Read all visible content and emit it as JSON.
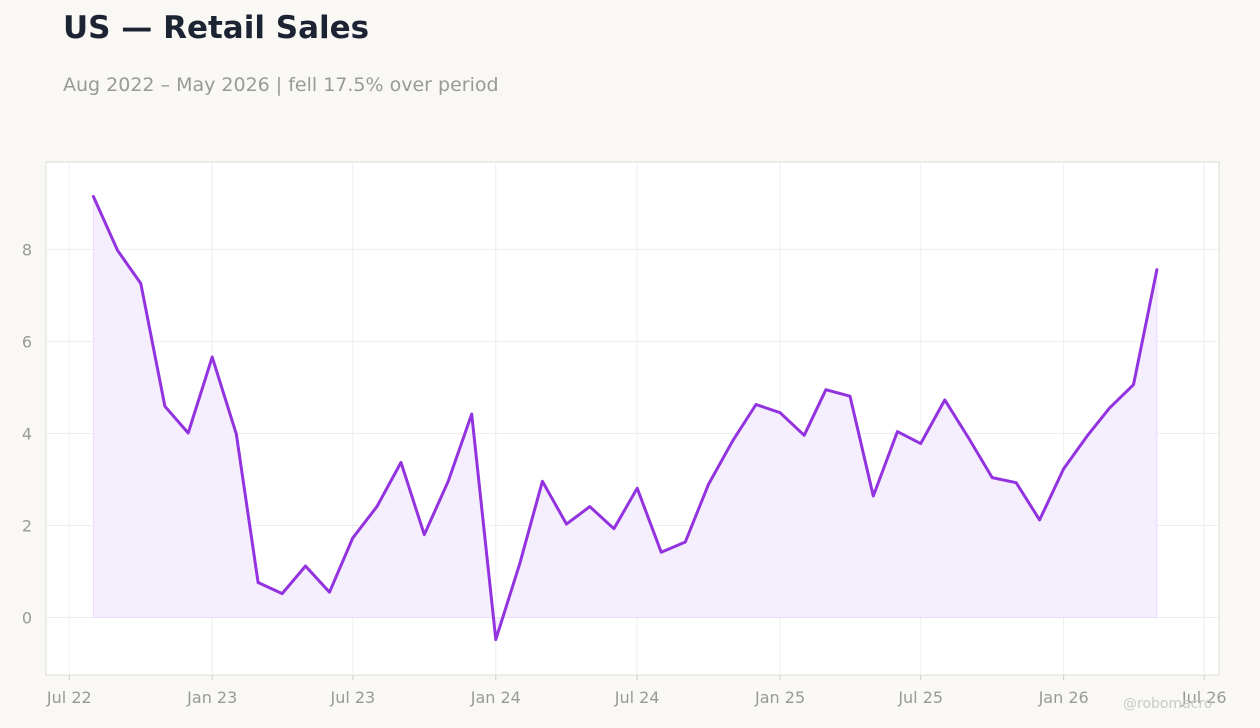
{
  "header": {
    "title": "US — Retail Sales",
    "subtitle": "Aug 2022 – May 2026 | fell 17.5% over period"
  },
  "watermark": "@robomacro",
  "colors": {
    "line": "#9333e0",
    "fill": "#f5eefd",
    "plot_bg": "#ffffff",
    "page_bg": "#f9f8f5",
    "grid": "#eeeeee",
    "tick_text": "#999999"
  },
  "chart_data": {
    "type": "area",
    "title": "US — Retail Sales",
    "subtitle": "Aug 2022 – May 2026 | fell 17.5% over period",
    "xlabel": "",
    "ylabel": "",
    "grid": true,
    "legend": "none",
    "x_range": [
      "2022-06-01",
      "2026-07-20"
    ],
    "ylim": [
      -1.25,
      9.9
    ],
    "y_ticks": [
      0,
      2,
      4,
      6,
      8
    ],
    "x_ticks": [
      {
        "date": "2022-07-01",
        "label": "Jul 22"
      },
      {
        "date": "2023-01-01",
        "label": "Jan 23"
      },
      {
        "date": "2023-07-01",
        "label": "Jul 23"
      },
      {
        "date": "2024-01-01",
        "label": "Jan 24"
      },
      {
        "date": "2024-07-01",
        "label": "Jul 24"
      },
      {
        "date": "2025-01-01",
        "label": "Jan 25"
      },
      {
        "date": "2025-07-01",
        "label": "Jul 25"
      },
      {
        "date": "2026-01-01",
        "label": "Jan 26"
      },
      {
        "date": "2026-07-01",
        "label": "Jul 26"
      }
    ],
    "x": [
      "2022-08-01",
      "2022-09-01",
      "2022-10-01",
      "2022-11-01",
      "2022-12-01",
      "2023-01-01",
      "2023-02-01",
      "2023-03-01",
      "2023-04-01",
      "2023-05-01",
      "2023-06-01",
      "2023-07-01",
      "2023-08-01",
      "2023-09-01",
      "2023-10-01",
      "2023-11-01",
      "2023-12-01",
      "2024-01-01",
      "2024-02-01",
      "2024-03-01",
      "2024-04-01",
      "2024-05-01",
      "2024-06-01",
      "2024-07-01",
      "2024-08-01",
      "2024-09-01",
      "2024-10-01",
      "2024-11-01",
      "2024-12-01",
      "2025-01-01",
      "2025-02-01",
      "2025-03-01",
      "2025-04-01",
      "2025-05-01",
      "2025-06-01",
      "2025-07-01",
      "2025-08-01",
      "2025-09-01",
      "2025-10-01",
      "2025-11-01",
      "2025-12-01",
      "2026-01-01",
      "2026-02-01",
      "2026-03-01",
      "2026-04-01",
      "2026-05-01"
    ],
    "values": [
      9.15,
      7.98,
      7.26,
      4.59,
      4.01,
      5.66,
      3.99,
      0.76,
      0.52,
      1.12,
      0.55,
      1.73,
      2.41,
      3.37,
      1.8,
      2.97,
      4.42,
      -0.48,
      1.18,
      2.96,
      2.03,
      2.41,
      1.93,
      2.81,
      1.42,
      1.64,
      2.9,
      3.84,
      4.63,
      4.45,
      3.96,
      4.95,
      4.81,
      2.64,
      4.04,
      3.78,
      4.73,
      3.89,
      3.04,
      2.93,
      2.12,
      3.23,
      3.96,
      4.55,
      5.06,
      7.56
    ]
  }
}
